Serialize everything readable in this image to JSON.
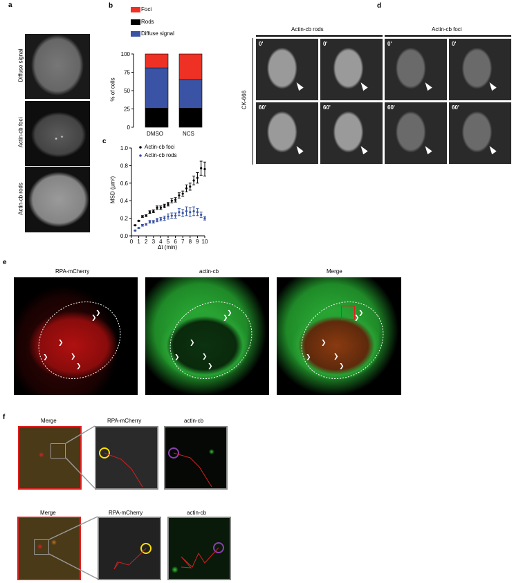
{
  "panels": {
    "a": {
      "label": "a",
      "rows": [
        "Diffuse signal",
        "Actin-cb foci",
        "Actin-cb rods"
      ]
    },
    "b": {
      "label": "b"
    },
    "c": {
      "label": "c"
    },
    "d": {
      "label": "d",
      "groups": [
        "Actin-cb rods",
        "Actin-cb foci"
      ],
      "row_label": "CK-666",
      "timepoints": [
        "0'",
        "60'"
      ]
    },
    "e": {
      "label": "e",
      "columns": [
        "RPA-mCherry",
        "actin-cb",
        "Merge"
      ]
    },
    "f": {
      "label": "f",
      "columns": [
        "Merge",
        "RPA-mCherry",
        "actin-cb"
      ]
    }
  },
  "colors": {
    "foci": "#ee3124",
    "rods": "#000000",
    "diffuse": "#3a53a4",
    "rods_series": "#3a53a4",
    "foci_series": "#000000",
    "track": "#d42020",
    "yellow_circle": "#ffe000",
    "purple_circle": "#8a3fb0"
  },
  "chart_data": [
    {
      "type": "bar",
      "stacked": true,
      "categories": [
        "DMSO",
        "NCS"
      ],
      "series": [
        {
          "name": "Rods",
          "values": [
            26,
            26
          ]
        },
        {
          "name": "Diffuse signal",
          "values": [
            55,
            39
          ]
        },
        {
          "name": "Foci",
          "values": [
            19,
            35
          ]
        }
      ],
      "legend": [
        "Foci",
        "Rods",
        "Diffuse signal"
      ],
      "legend_placement": "top",
      "ylabel": "% of cells",
      "ylim": [
        0,
        100
      ],
      "yticks": [
        "0",
        "25",
        "50",
        "75",
        "100"
      ]
    },
    {
      "type": "scatter",
      "x": [
        0.5,
        1,
        1.5,
        2,
        2.5,
        3,
        3.5,
        4,
        4.5,
        5,
        5.5,
        6,
        6.5,
        7,
        7.5,
        8,
        8.5,
        9,
        9.5,
        10
      ],
      "series": [
        {
          "name": "Actin-cb foci",
          "values": [
            0.12,
            0.17,
            0.22,
            0.23,
            0.27,
            0.28,
            0.32,
            0.32,
            0.34,
            0.36,
            0.4,
            0.41,
            0.46,
            0.48,
            0.54,
            0.56,
            0.63,
            0.66,
            0.77,
            0.76
          ],
          "errors": [
            0.005,
            0.005,
            0.01,
            0.01,
            0.015,
            0.015,
            0.02,
            0.02,
            0.02,
            0.02,
            0.025,
            0.025,
            0.03,
            0.03,
            0.04,
            0.04,
            0.05,
            0.06,
            0.08,
            0.08
          ]
        },
        {
          "name": "Actin-cb rods",
          "values": [
            0.06,
            0.09,
            0.12,
            0.13,
            0.16,
            0.16,
            0.18,
            0.19,
            0.2,
            0.22,
            0.23,
            0.23,
            0.27,
            0.26,
            0.28,
            0.27,
            0.28,
            0.27,
            0.24,
            0.2
          ],
          "errors": [
            0.005,
            0.005,
            0.01,
            0.01,
            0.015,
            0.015,
            0.02,
            0.02,
            0.025,
            0.03,
            0.03,
            0.03,
            0.04,
            0.04,
            0.05,
            0.05,
            0.05,
            0.04,
            0.03,
            0.02
          ]
        }
      ],
      "xlabel": "Δt (min)",
      "ylabel": "MSD (μm²)",
      "xlim": [
        0,
        10
      ],
      "ylim": [
        0,
        1.0
      ],
      "xticks": [
        "0",
        "1",
        "2",
        "3",
        "4",
        "5",
        "6",
        "7",
        "8",
        "9",
        "10"
      ],
      "yticks": [
        "0.0",
        "0.2",
        "0.4",
        "0.6",
        "0.8",
        "1.0"
      ],
      "legend_placement": "top-left"
    }
  ]
}
